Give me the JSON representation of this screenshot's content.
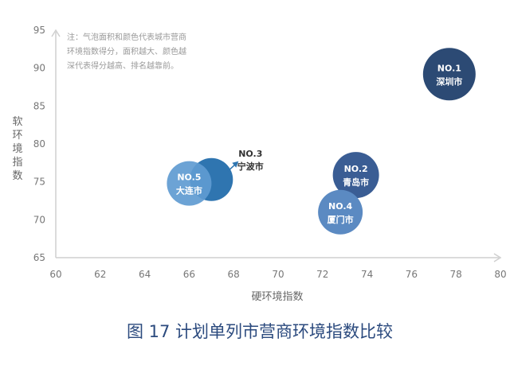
{
  "chart_data": {
    "type": "bubble",
    "title": "图 17 计划单列市营商环境指数比较",
    "xlabel": "硬环境指数",
    "ylabel": "软环境指数",
    "xlim": [
      60,
      80
    ],
    "ylim": [
      65,
      95
    ],
    "xticks": [
      60,
      62,
      64,
      66,
      68,
      70,
      72,
      74,
      76,
      78,
      80
    ],
    "yticks": [
      65,
      70,
      75,
      80,
      85,
      90,
      95
    ],
    "note_lines": [
      "注：气泡面积和颜色代表城市营商",
      "环境指数得分，面积越大、颜色越",
      "深代表得分越高、排名越靠前。"
    ],
    "points": [
      {
        "rank": "NO.1",
        "city": "深圳市",
        "x": 77.7,
        "y": 89.2,
        "color": "#2c4a74"
      },
      {
        "rank": "NO.2",
        "city": "青岛市",
        "x": 73.5,
        "y": 75.9,
        "color": "#3a5d94"
      },
      {
        "rank": "NO.3",
        "city": "宁波市",
        "x": 67.0,
        "y": 75.3,
        "color": "#2f75b0"
      },
      {
        "rank": "NO.4",
        "city": "厦门市",
        "x": 72.8,
        "y": 71.0,
        "color": "#5b8ac2"
      },
      {
        "rank": "NO.5",
        "city": "大连市",
        "x": 66.0,
        "y": 74.8,
        "color": "#5f9bd1"
      }
    ]
  }
}
